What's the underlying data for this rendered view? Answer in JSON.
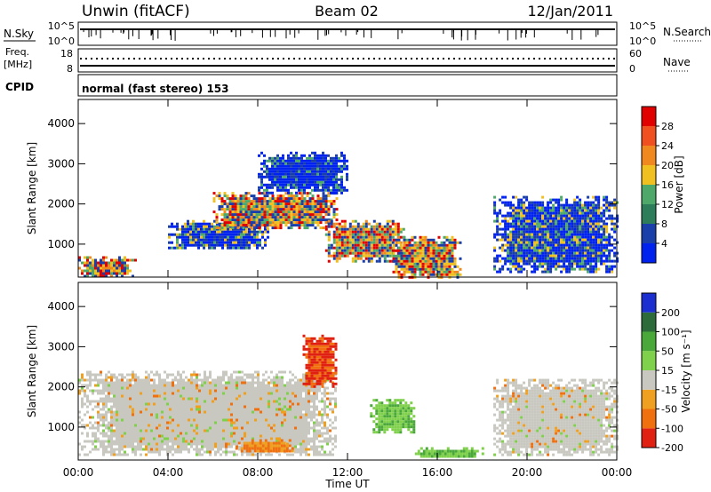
{
  "header": {
    "title": "Unwin (fitACF)",
    "beam": "Beam 02",
    "date": "12/Jan/2011"
  },
  "nsky_panel": {
    "left_label": "N.Sky",
    "left_ticks": [
      "10^5",
      "10^0"
    ],
    "right_label": "N.Search",
    "right_ticks": [
      "10^5",
      "10^0"
    ]
  },
  "freq_panel": {
    "left_label_1": "Freq.",
    "left_label_2": "[MHz]",
    "left_ticks": [
      "18",
      "8"
    ],
    "right_label": "Nave",
    "right_ticks": [
      "60",
      "0"
    ]
  },
  "cpid_panel": {
    "label": "CPID",
    "text": "normal (fast stereo) 153"
  },
  "colors": {
    "power_scale": [
      "#0022ee",
      "#1a3fa8",
      "#2e7d5a",
      "#4ea86a",
      "#f0c020",
      "#f08820",
      "#f05020",
      "#e00000"
    ],
    "velocity_scale": [
      "#1b2fd0",
      "#2e6b3a",
      "#4aa83a",
      "#7fd04a",
      "#c8c8c0",
      "#f0a020",
      "#f07010",
      "#e02010"
    ]
  },
  "power_colorbar": {
    "label": "Power [dB]",
    "ticks": [
      "28",
      "24",
      "20",
      "16",
      "12",
      "8",
      "4"
    ]
  },
  "velocity_colorbar": {
    "label": "Velocity [m s⁻¹]",
    "ticks": [
      "200",
      "100",
      "50",
      "15",
      "-15",
      "-50",
      "-100",
      "-200"
    ]
  },
  "axes": {
    "ylabel": "Slant Range [km]",
    "yticks": [
      "4000",
      "3000",
      "2000",
      "1000"
    ],
    "xticks": [
      "00:00",
      "04:00",
      "08:00",
      "12:00",
      "16:00",
      "20:00",
      "00:00"
    ],
    "xlabel": "Time UT"
  },
  "chart_data": [
    {
      "type": "heatmap",
      "title": "",
      "xlabel": "",
      "ylabel": "Slant Range [km]",
      "xlim_hours": [
        0,
        24
      ],
      "ylim": [
        180,
        4600
      ],
      "color_label": "Power [dB]",
      "color_levels": [
        4,
        8,
        12,
        16,
        20,
        24,
        28
      ],
      "regions": [
        {
          "t0": 0.0,
          "t1": 2.5,
          "r0": 200,
          "r1": 700,
          "level": "high"
        },
        {
          "t0": 4.0,
          "t1": 8.5,
          "r0": 900,
          "r1": 1600,
          "level": "mid"
        },
        {
          "t0": 6.0,
          "t1": 11.5,
          "r0": 1400,
          "r1": 2300,
          "level": "high"
        },
        {
          "t0": 8.0,
          "t1": 12.0,
          "r0": 2300,
          "r1": 3300,
          "level": "low"
        },
        {
          "t0": 11.0,
          "t1": 14.5,
          "r0": 600,
          "r1": 1600,
          "level": "high"
        },
        {
          "t0": 14.0,
          "t1": 17.0,
          "r0": 200,
          "r1": 1200,
          "level": "high"
        },
        {
          "t0": 18.5,
          "t1": 24.0,
          "r0": 300,
          "r1": 2200,
          "level": "mid"
        }
      ]
    },
    {
      "type": "heatmap",
      "title": "",
      "xlabel": "Time UT",
      "ylabel": "Slant Range [km]",
      "xlim_hours": [
        0,
        24
      ],
      "ylim": [
        180,
        4600
      ],
      "color_label": "Velocity [m s⁻¹]",
      "color_levels": [
        -200,
        -100,
        -50,
        -15,
        15,
        50,
        100,
        200
      ],
      "regions": [
        {
          "t0": 0.0,
          "t1": 11.5,
          "r0": 300,
          "r1": 2400,
          "level": "near-zero"
        },
        {
          "t0": 7.0,
          "t1": 9.5,
          "r0": 400,
          "r1": 700,
          "level": "-100"
        },
        {
          "t0": 10.0,
          "t1": 11.5,
          "r0": 2000,
          "r1": 3300,
          "level": "-200"
        },
        {
          "t0": 13.0,
          "t1": 15.0,
          "r0": 900,
          "r1": 1700,
          "level": "50"
        },
        {
          "t0": 15.0,
          "t1": 18.0,
          "r0": 250,
          "r1": 500,
          "level": "50"
        },
        {
          "t0": 18.5,
          "t1": 24.0,
          "r0": 300,
          "r1": 2200,
          "level": "near-zero"
        }
      ]
    }
  ]
}
